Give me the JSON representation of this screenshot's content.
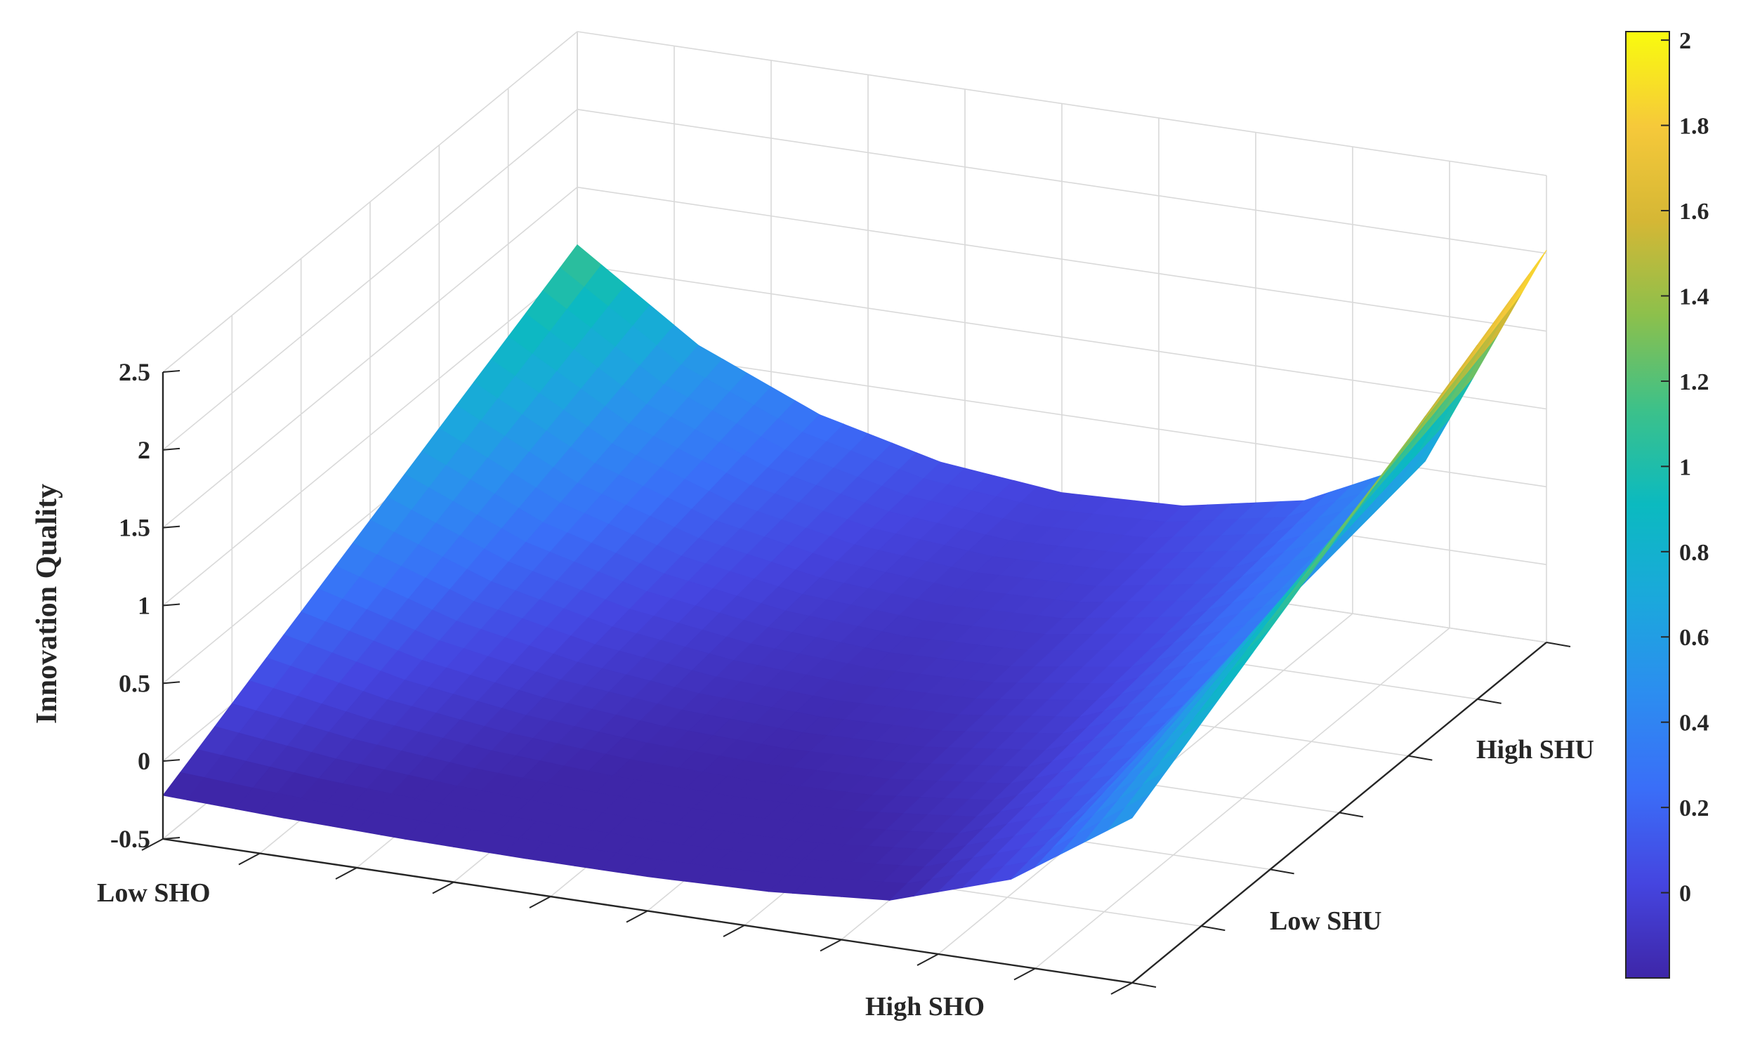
{
  "chart_data": {
    "type": "surface",
    "zlabel": "Innovation Quality",
    "xlabel": "",
    "ylabel": "",
    "x_labels": {
      "low": "Low SHO",
      "high": "High SHO"
    },
    "y_labels": {
      "low": "Low SHU",
      "high": "High SHU"
    },
    "x_range": [
      -2,
      2
    ],
    "y_range": [
      -2,
      2
    ],
    "zlim": [
      -0.5,
      2.5
    ],
    "z_ticks": [
      "-0.5",
      "0",
      "0.5",
      "1",
      "1.5",
      "2",
      "2.5"
    ],
    "z_tick_values": [
      -0.5,
      0,
      0.5,
      1,
      1.5,
      2,
      2.5
    ],
    "grid": true,
    "colormap": "parula",
    "colorbar": {
      "min": -0.2,
      "max": 2.02,
      "ticks": [
        "0",
        "0.2",
        "0.4",
        "0.6",
        "0.8",
        "1",
        "1.2",
        "1.4",
        "1.6",
        "1.8",
        "2"
      ],
      "tick_values": [
        0,
        0.2,
        0.4,
        0.6,
        0.8,
        1,
        1.2,
        1.4,
        1.6,
        1.8,
        2
      ]
    },
    "surface": {
      "x": [
        -2,
        -1.5,
        -1,
        -0.5,
        0,
        0.5,
        1,
        1.5,
        2
      ],
      "y": [
        -2,
        -1.5,
        -1,
        -0.5,
        0,
        0.5,
        1,
        1.5,
        2
      ],
      "corner_values": {
        "lowSHO_lowSHU": -0.22,
        "highSHO_lowSHU": 0.56,
        "lowSHO_highSHU": 1.13,
        "highSHO_highSHU": 2.02
      },
      "edge_values": {
        "lowSHU_edge": [
          -0.22,
          -0.25,
          -0.27,
          -0.28,
          -0.28,
          -0.26,
          -0.2,
          0.05,
          0.56
        ],
        "highSHU_edge": [
          1.13,
          0.6,
          0.27,
          0.08,
          0.0,
          0.03,
          0.18,
          0.55,
          2.02
        ]
      }
    }
  }
}
